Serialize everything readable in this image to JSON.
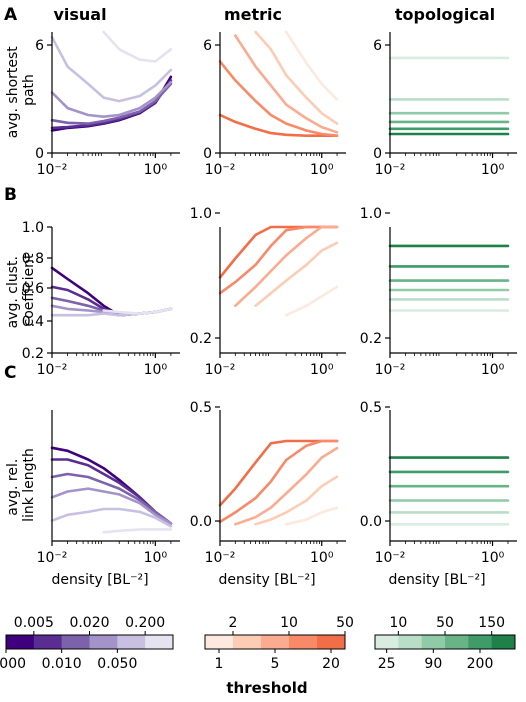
{
  "columns": [
    "visual",
    "metric",
    "topological"
  ],
  "rows": [
    {
      "letter": "A",
      "ylabel_lines": [
        "avg. shortest",
        "path"
      ]
    },
    {
      "letter": "B",
      "ylabel_lines": [
        "avg. clust.",
        "coefficient"
      ]
    },
    {
      "letter": "C",
      "ylabel_lines": [
        "avg. rel.",
        "link length"
      ]
    }
  ],
  "xlabel": "density [BL⁻²]",
  "x_tick_labels": [
    "10⁻²",
    "10⁰"
  ],
  "legend_title": "threshold",
  "colorbars": [
    {
      "name": "visual",
      "colors": [
        "#3f007d",
        "#5a2d93",
        "#7b62ab",
        "#a393c9",
        "#c8c0e0",
        "#e6e3f1"
      ],
      "top_labels": [
        "0.005",
        "0.020",
        "0.200"
      ],
      "bottom_labels": [
        "0.000",
        "0.010",
        "0.050"
      ]
    },
    {
      "name": "metric",
      "colors": [
        "#fde9dd",
        "#fcccb5",
        "#fbab8f",
        "#f88a68",
        "#f26e48"
      ],
      "top_labels": [
        "2",
        "10",
        "50"
      ],
      "bottom_labels": [
        "1",
        "5",
        "20"
      ]
    },
    {
      "name": "topological",
      "colors": [
        "#d8ede0",
        "#b8dec7",
        "#91caa6",
        "#68b487",
        "#3f9b69",
        "#1f8049"
      ],
      "top_labels": [
        "10",
        "50",
        "150"
      ],
      "bottom_labels": [
        "25",
        "90",
        "200"
      ]
    }
  ],
  "chart_data": [
    {
      "type": "line",
      "column": "visual",
      "row": "A",
      "xscale": "log",
      "xlim": [
        0.01,
        3
      ],
      "ylim": [
        0,
        7
      ],
      "yticks": [
        "0",
        "6"
      ],
      "x_marks": [
        0.01,
        0.02,
        0.05,
        0.1,
        0.2,
        0.5,
        1,
        2
      ],
      "series": [
        {
          "color": "#3f007d",
          "values": [
            1.3,
            1.45,
            1.55,
            1.7,
            1.9,
            2.3,
            2.9,
            4.4
          ]
        },
        {
          "color": "#5a2d93",
          "values": [
            1.45,
            1.5,
            1.6,
            1.75,
            1.95,
            2.35,
            2.9,
            4.2
          ]
        },
        {
          "color": "#7b62ab",
          "values": [
            1.9,
            1.75,
            1.7,
            1.85,
            2.05,
            2.4,
            3.0,
            4.0
          ]
        },
        {
          "color": "#a393c9",
          "values": [
            3.5,
            2.6,
            2.2,
            2.1,
            2.2,
            2.6,
            3.2,
            4.1
          ]
        },
        {
          "color": "#c8c0e0",
          "values": [
            6.7,
            5.0,
            4.0,
            3.2,
            3.0,
            3.3,
            3.9,
            4.8
          ]
        },
        {
          "color": "#e6e3f1",
          "values": [
            null,
            null,
            null,
            7.0,
            6.0,
            5.4,
            5.3,
            6.0
          ]
        }
      ]
    },
    {
      "type": "line",
      "column": "metric",
      "row": "A",
      "xscale": "log",
      "xlim": [
        0.01,
        3
      ],
      "ylim": [
        0,
        7
      ],
      "yticks": [
        "0",
        "6"
      ],
      "x_marks": [
        0.01,
        0.02,
        0.05,
        0.1,
        0.2,
        0.5,
        1,
        2
      ],
      "series": [
        {
          "color": "#f26e48",
          "values": [
            2.2,
            1.8,
            1.4,
            1.15,
            1.05,
            1.0,
            1.0,
            1.0
          ]
        },
        {
          "color": "#f88a68",
          "values": [
            5.3,
            4.2,
            3.0,
            2.2,
            1.7,
            1.3,
            1.1,
            1.0
          ]
        },
        {
          "color": "#fbab8f",
          "values": [
            null,
            6.8,
            5.0,
            3.9,
            2.8,
            2.0,
            1.5,
            1.2
          ]
        },
        {
          "color": "#fcccb5",
          "values": [
            null,
            null,
            7.0,
            6.0,
            4.5,
            3.2,
            2.3,
            1.7
          ]
        },
        {
          "color": "#fde9dd",
          "values": [
            null,
            null,
            null,
            null,
            7.0,
            5.2,
            4.0,
            3.1
          ]
        }
      ]
    },
    {
      "type": "line",
      "column": "topological",
      "row": "A",
      "xscale": "log",
      "xlim": [
        0.01,
        3
      ],
      "ylim": [
        0,
        7
      ],
      "yticks": [
        "0",
        "6"
      ],
      "x_marks": [
        0.01,
        0.02,
        0.05,
        0.1,
        0.2,
        0.5,
        1,
        2
      ],
      "series": [
        {
          "color": "#1f8049",
          "values": [
            1.1,
            1.1,
            1.1,
            1.1,
            1.1,
            1.1,
            1.1,
            1.1
          ]
        },
        {
          "color": "#3f9b69",
          "values": [
            1.4,
            1.4,
            1.4,
            1.4,
            1.4,
            1.4,
            1.4,
            1.4
          ]
        },
        {
          "color": "#68b487",
          "values": [
            1.8,
            1.8,
            1.8,
            1.8,
            1.8,
            1.8,
            1.8,
            1.8
          ]
        },
        {
          "color": "#91caa6",
          "values": [
            2.3,
            2.3,
            2.3,
            2.3,
            2.3,
            2.3,
            2.3,
            2.3
          ]
        },
        {
          "color": "#b8dec7",
          "values": [
            3.1,
            3.1,
            3.1,
            3.1,
            3.1,
            3.1,
            3.1,
            3.1
          ]
        },
        {
          "color": "#d8ede0",
          "values": [
            5.5,
            5.5,
            5.5,
            5.5,
            5.5,
            5.5,
            5.5,
            5.5
          ]
        }
      ]
    },
    {
      "type": "line",
      "column": "visual",
      "row": "B",
      "xscale": "log",
      "xlim": [
        0.01,
        3
      ],
      "ylim": [
        0.2,
        1.0
      ],
      "yticks": [
        "0.2",
        "0.4",
        "0.6",
        "0.8",
        "1.0"
      ],
      "x_marks": [
        0.01,
        0.02,
        0.05,
        0.1,
        0.2,
        0.5,
        1,
        2
      ],
      "series": [
        {
          "color": "#3f007d",
          "values": [
            0.74,
            0.67,
            0.58,
            0.5,
            0.44,
            0.45,
            0.46,
            0.48
          ]
        },
        {
          "color": "#5a2d93",
          "values": [
            0.62,
            0.6,
            0.54,
            0.48,
            0.44,
            0.45,
            0.46,
            0.48
          ]
        },
        {
          "color": "#7b62ab",
          "values": [
            0.55,
            0.53,
            0.5,
            0.47,
            0.44,
            0.45,
            0.46,
            0.48
          ]
        },
        {
          "color": "#a393c9",
          "values": [
            0.5,
            0.48,
            0.47,
            0.46,
            0.44,
            0.45,
            0.46,
            0.48
          ]
        },
        {
          "color": "#c8c0e0",
          "values": [
            0.44,
            0.44,
            0.44,
            0.45,
            0.44,
            0.45,
            0.46,
            0.48
          ]
        },
        {
          "color": "#e6e3f1",
          "values": [
            null,
            null,
            null,
            0.47,
            0.46,
            0.45,
            0.46,
            0.48
          ]
        }
      ]
    },
    {
      "type": "line",
      "column": "metric",
      "row": "B",
      "xscale": "log",
      "xlim": [
        0.01,
        3
      ],
      "ylim": [
        0.2,
        1.0
      ],
      "yticks": [
        "0.2",
        "1.0"
      ],
      "x_marks": [
        0.01,
        0.02,
        0.05,
        0.1,
        0.2,
        0.5,
        1,
        2
      ],
      "series": [
        {
          "color": "#f26e48",
          "values": [
            0.68,
            0.8,
            0.95,
            1.0,
            1.0,
            1.0,
            1.0,
            1.0
          ]
        },
        {
          "color": "#f88a68",
          "values": [
            0.58,
            0.65,
            0.76,
            0.88,
            0.98,
            1.0,
            1.0,
            1.0
          ]
        },
        {
          "color": "#fbab8f",
          "values": [
            null,
            0.5,
            0.62,
            0.72,
            0.82,
            0.93,
            1.0,
            1.0
          ]
        },
        {
          "color": "#fcccb5",
          "values": [
            null,
            null,
            0.5,
            0.58,
            0.66,
            0.76,
            0.85,
            0.9
          ]
        },
        {
          "color": "#fde9dd",
          "values": [
            null,
            null,
            null,
            null,
            0.44,
            0.5,
            0.56,
            0.62
          ]
        }
      ]
    },
    {
      "type": "line",
      "column": "topological",
      "row": "B",
      "xscale": "log",
      "xlim": [
        0.01,
        3
      ],
      "ylim": [
        0.2,
        1.0
      ],
      "yticks": [
        "0.2",
        "1.0"
      ],
      "x_marks": [
        0.01,
        0.02,
        0.05,
        0.1,
        0.2,
        0.5,
        1,
        2
      ],
      "series": [
        {
          "color": "#1f8049",
          "values": [
            0.88,
            0.88,
            0.88,
            0.88,
            0.88,
            0.88,
            0.88,
            0.88
          ]
        },
        {
          "color": "#3f9b69",
          "values": [
            0.75,
            0.75,
            0.75,
            0.75,
            0.75,
            0.75,
            0.75,
            0.75
          ]
        },
        {
          "color": "#68b487",
          "values": [
            0.66,
            0.66,
            0.66,
            0.66,
            0.66,
            0.66,
            0.66,
            0.66
          ]
        },
        {
          "color": "#91caa6",
          "values": [
            0.6,
            0.6,
            0.6,
            0.6,
            0.6,
            0.6,
            0.6,
            0.6
          ]
        },
        {
          "color": "#b8dec7",
          "values": [
            0.54,
            0.54,
            0.54,
            0.54,
            0.54,
            0.54,
            0.54,
            0.54
          ]
        },
        {
          "color": "#d8ede0",
          "values": [
            0.47,
            0.47,
            0.47,
            0.47,
            0.47,
            0.47,
            0.47,
            0.47
          ]
        }
      ]
    },
    {
      "type": "line",
      "column": "visual",
      "row": "C",
      "xscale": "log",
      "xlim": [
        0.01,
        3
      ],
      "ylim": [
        0,
        0.45
      ],
      "yticks": [],
      "x_marks": [
        0.01,
        0.02,
        0.05,
        0.1,
        0.2,
        0.5,
        1,
        2
      ],
      "series": [
        {
          "color": "#3f007d",
          "values": [
            0.32,
            0.31,
            0.28,
            0.25,
            0.21,
            0.15,
            0.1,
            0.06
          ]
        },
        {
          "color": "#5a2d93",
          "values": [
            0.28,
            0.28,
            0.26,
            0.23,
            0.2,
            0.15,
            0.1,
            0.06
          ]
        },
        {
          "color": "#7b62ab",
          "values": [
            0.22,
            0.23,
            0.22,
            0.2,
            0.18,
            0.14,
            0.1,
            0.06
          ]
        },
        {
          "color": "#a393c9",
          "values": [
            0.15,
            0.17,
            0.18,
            0.17,
            0.16,
            0.13,
            0.09,
            0.06
          ]
        },
        {
          "color": "#c8c0e0",
          "values": [
            0.07,
            0.09,
            0.1,
            0.11,
            0.11,
            0.1,
            0.08,
            0.05
          ]
        },
        {
          "color": "#e6e3f1",
          "values": [
            null,
            null,
            null,
            0.03,
            0.035,
            0.04,
            0.04,
            0.04
          ]
        }
      ]
    },
    {
      "type": "line",
      "column": "metric",
      "row": "C",
      "xscale": "log",
      "xlim": [
        0.01,
        3
      ],
      "ylim": [
        -0.05,
        0.5
      ],
      "yticks": [
        "0.0",
        "0.5"
      ],
      "x_marks": [
        0.01,
        0.02,
        0.05,
        0.1,
        0.2,
        0.5,
        1,
        2
      ],
      "series": [
        {
          "color": "#f26e48",
          "values": [
            0.1,
            0.17,
            0.28,
            0.36,
            0.37,
            0.37,
            0.37,
            0.37
          ]
        },
        {
          "color": "#f88a68",
          "values": [
            0.03,
            0.07,
            0.13,
            0.2,
            0.29,
            0.35,
            0.37,
            0.37
          ]
        },
        {
          "color": "#fbab8f",
          "values": [
            null,
            0.02,
            0.05,
            0.09,
            0.15,
            0.23,
            0.3,
            0.34
          ]
        },
        {
          "color": "#fcccb5",
          "values": [
            null,
            null,
            0.02,
            0.04,
            0.07,
            0.12,
            0.18,
            0.22
          ]
        },
        {
          "color": "#fde9dd",
          "values": [
            null,
            null,
            null,
            null,
            0.02,
            0.04,
            0.07,
            0.09
          ]
        }
      ]
    },
    {
      "type": "line",
      "column": "topological",
      "row": "C",
      "xscale": "log",
      "xlim": [
        0.01,
        3
      ],
      "ylim": [
        -0.05,
        0.5
      ],
      "yticks": [
        "0.0",
        "0.5"
      ],
      "x_marks": [
        0.01,
        0.02,
        0.05,
        0.1,
        0.2,
        0.5,
        1,
        2
      ],
      "series": [
        {
          "color": "#1f8049",
          "values": [
            0.3,
            0.3,
            0.3,
            0.3,
            0.3,
            0.3,
            0.3,
            0.3
          ]
        },
        {
          "color": "#3f9b69",
          "values": [
            0.24,
            0.24,
            0.24,
            0.24,
            0.24,
            0.24,
            0.24,
            0.24
          ]
        },
        {
          "color": "#68b487",
          "values": [
            0.18,
            0.18,
            0.18,
            0.18,
            0.18,
            0.18,
            0.18,
            0.18
          ]
        },
        {
          "color": "#91caa6",
          "values": [
            0.12,
            0.12,
            0.12,
            0.12,
            0.12,
            0.12,
            0.12,
            0.12
          ]
        },
        {
          "color": "#b8dec7",
          "values": [
            0.07,
            0.07,
            0.07,
            0.07,
            0.07,
            0.07,
            0.07,
            0.07
          ]
        },
        {
          "color": "#d8ede0",
          "values": [
            0.02,
            0.02,
            0.02,
            0.02,
            0.02,
            0.02,
            0.02,
            0.02
          ]
        }
      ]
    }
  ]
}
